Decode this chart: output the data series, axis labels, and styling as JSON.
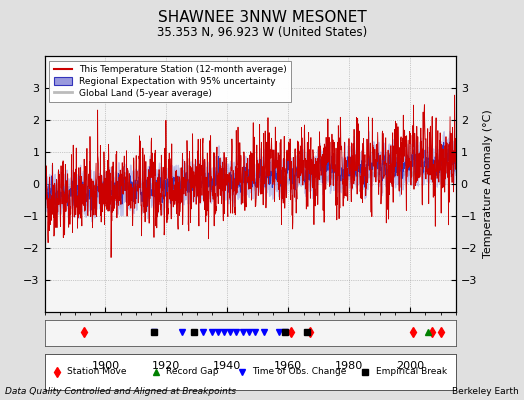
{
  "title": "SHAWNEE 3NNW MESONET",
  "subtitle": "35.353 N, 96.923 W (United States)",
  "xlabel_bottom": "Data Quality Controlled and Aligned at Breakpoints",
  "xlabel_right": "Berkeley Earth",
  "ylabel": "Temperature Anomaly (°C)",
  "ylim": [
    -4,
    4
  ],
  "xlim": [
    1880,
    2015
  ],
  "xticks": [
    1900,
    1920,
    1940,
    1960,
    1980,
    2000
  ],
  "yticks": [
    -3,
    -2,
    -1,
    0,
    1,
    2,
    3
  ],
  "bg_color": "#e0e0e0",
  "plot_bg_color": "#f5f5f5",
  "station_color": "#cc0000",
  "regional_color": "#3333bb",
  "regional_fill_color": "#9999dd",
  "global_color": "#bbbbbb",
  "legend_labels": [
    "This Temperature Station (12-month average)",
    "Regional Expectation with 95% uncertainty",
    "Global Land (5-year average)"
  ],
  "marker_data": {
    "station_move_years": [
      1893,
      1961,
      1967,
      2001,
      2007,
      2010
    ],
    "record_gap_years": [
      2006
    ],
    "obs_change_years": [
      1916,
      1925,
      1932,
      1935,
      1937,
      1939,
      1941,
      1943,
      1945,
      1947,
      1949,
      1952,
      1957,
      1959
    ],
    "empirical_break_years": [
      1916,
      1929,
      1959,
      1966
    ]
  },
  "seed": 42,
  "start_year": 1880,
  "end_year": 2014
}
